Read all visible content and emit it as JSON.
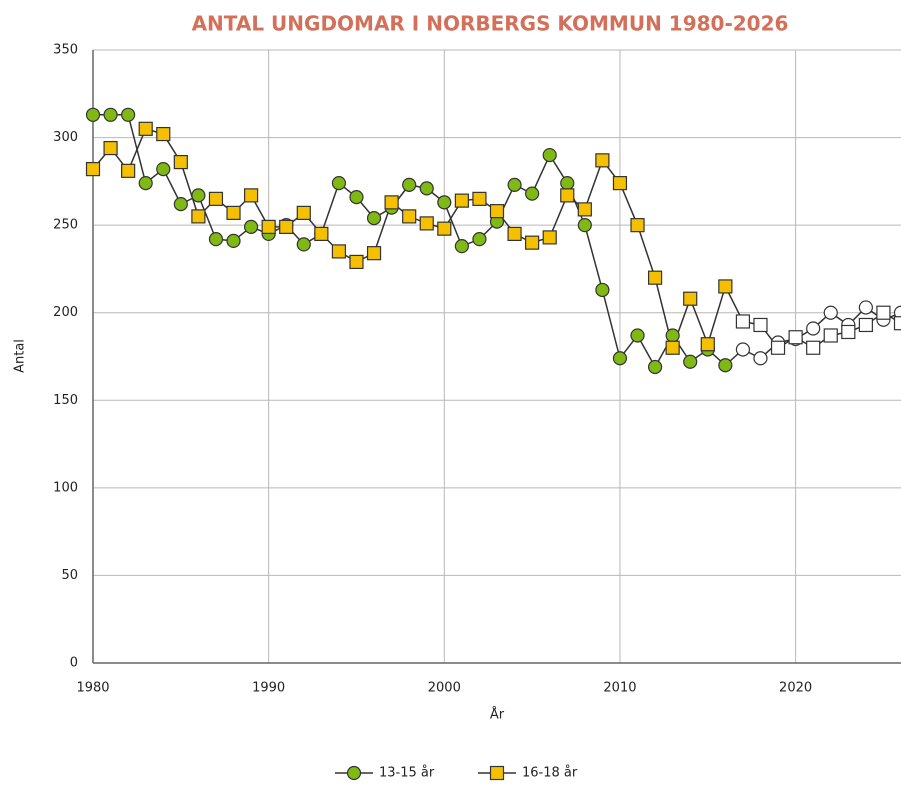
{
  "chart_data": {
    "type": "line",
    "title": "ANTAL UNGDOMAR I NORBERGS KOMMUN 1980-2026",
    "xlabel": "År",
    "ylabel": "Antal",
    "x": [
      1980,
      1981,
      1982,
      1983,
      1984,
      1985,
      1986,
      1987,
      1988,
      1989,
      1990,
      1991,
      1992,
      1993,
      1994,
      1995,
      1996,
      1997,
      1998,
      1999,
      2000,
      2001,
      2002,
      2003,
      2004,
      2005,
      2006,
      2007,
      2008,
      2009,
      2010,
      2011,
      2012,
      2013,
      2014,
      2015,
      2016,
      2017,
      2018,
      2019,
      2020,
      2021,
      2022,
      2023,
      2024,
      2025,
      2026
    ],
    "forecast_from": 2017,
    "forecast_color": "#ffffff",
    "series": [
      {
        "name": "13-15 år",
        "color": "#80b814",
        "marker": "circle",
        "values": [
          313,
          313,
          313,
          274,
          282,
          262,
          267,
          242,
          241,
          249,
          245,
          250,
          239,
          245,
          274,
          266,
          254,
          260,
          273,
          271,
          263,
          238,
          242,
          252,
          273,
          268,
          290,
          274,
          250,
          213,
          174,
          187,
          169,
          187,
          172,
          179,
          170,
          179,
          174,
          183,
          185,
          191,
          200,
          193,
          203,
          196,
          200
        ]
      },
      {
        "name": "16-18 år",
        "color": "#f5c000",
        "marker": "square",
        "values": [
          282,
          294,
          281,
          305,
          302,
          286,
          255,
          265,
          257,
          267,
          249,
          249,
          257,
          245,
          235,
          229,
          234,
          263,
          255,
          251,
          248,
          264,
          265,
          258,
          245,
          240,
          243,
          267,
          259,
          287,
          274,
          250,
          220,
          180,
          208,
          182,
          215,
          195,
          193,
          180,
          186,
          180,
          187,
          189,
          193,
          200,
          194
        ]
      }
    ],
    "xlim": [
      1980,
      2026
    ],
    "xticks": [
      1980,
      1990,
      2000,
      2010,
      2020
    ],
    "ylim": [
      0,
      350
    ],
    "yticks": [
      0,
      50,
      100,
      150,
      200,
      250,
      300,
      350
    ],
    "grid": true,
    "legend": "bottom"
  }
}
